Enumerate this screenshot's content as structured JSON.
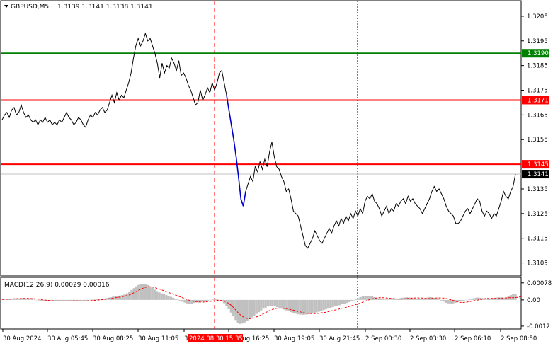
{
  "header": {
    "symbol": "GBPUSD,M5",
    "ohlc": "1.3139 1.3141 1.3138 1.3141"
  },
  "macd_header": "MACD(12,26,9) 0.00029 0.00016",
  "colors": {
    "price_line": "#000000",
    "highlight_line": "#0000cc",
    "level_red": "#ff0000",
    "level_green": "#008000",
    "current_price": "#c0c0c0",
    "histogram": "#c0c0c0",
    "signal": "#ff0000",
    "time_marker": "#ff0000"
  },
  "chart_data": {
    "type": "line",
    "title": "GBPUSD,M5",
    "price_axis": {
      "min": 1.31,
      "max": 1.3211,
      "tick_labels": [
        "1.3205",
        "1.3195",
        "1.3185",
        "1.3175",
        "1.3165",
        "1.3155",
        "1.3135",
        "1.3125",
        "1.3115",
        "1.3105"
      ]
    },
    "levels": [
      {
        "value": 1.319,
        "label": "1.3190",
        "color": "green"
      },
      {
        "value": 1.3171,
        "label": "1.3171",
        "color": "red"
      },
      {
        "value": 1.3145,
        "label": "1.3145",
        "color": "red"
      }
    ],
    "current_price": {
      "value": 1.3141,
      "label": "1.3141"
    },
    "x_labels": [
      "30 Aug 2024",
      "30 Aug 05:45",
      "30 Aug 08:25",
      "30 Aug 11:05",
      "30 Aug 13:45",
      "30 Aug 16:25",
      "30 Aug 19:05",
      "30 Aug 21:45",
      "2 Sep 00:30",
      "2 Sep 03:30",
      "2 Sep 06:10",
      "2 Sep 08:50"
    ],
    "marker_label": "2024.08.30 15:35",
    "highlight_range": [
      94,
      102
    ],
    "price_series": [
      1.3163,
      1.3165,
      1.3166,
      1.3164,
      1.3167,
      1.3168,
      1.3165,
      1.3166,
      1.3169,
      1.3166,
      1.3164,
      1.3165,
      1.3163,
      1.3162,
      1.3163,
      1.3161,
      1.3163,
      1.3162,
      1.3164,
      1.3162,
      1.3163,
      1.3161,
      1.3162,
      1.3161,
      1.3163,
      1.3162,
      1.3164,
      1.3166,
      1.3164,
      1.3163,
      1.3161,
      1.3162,
      1.3164,
      1.3163,
      1.3161,
      1.316,
      1.3163,
      1.3165,
      1.3164,
      1.3166,
      1.3165,
      1.3167,
      1.3168,
      1.3166,
      1.3167,
      1.317,
      1.3173,
      1.317,
      1.3174,
      1.3171,
      1.3173,
      1.3172,
      1.3175,
      1.3178,
      1.3182,
      1.3188,
      1.3193,
      1.3196,
      1.3193,
      1.3195,
      1.3198,
      1.3195,
      1.3196,
      1.3193,
      1.319,
      1.3186,
      1.318,
      1.3186,
      1.3182,
      1.3185,
      1.3184,
      1.3188,
      1.3186,
      1.3183,
      1.3187,
      1.3181,
      1.3182,
      1.318,
      1.3177,
      1.3175,
      1.3172,
      1.3169,
      1.317,
      1.3175,
      1.3171,
      1.3173,
      1.3176,
      1.3174,
      1.3178,
      1.3175,
      1.3178,
      1.3182,
      1.3183,
      1.3178,
      1.3173,
      1.3167,
      1.3161,
      1.3155,
      1.3148,
      1.314,
      1.3131,
      1.3128,
      1.3134,
      1.3137,
      1.314,
      1.3138,
      1.3144,
      1.3142,
      1.3146,
      1.3143,
      1.3147,
      1.3144,
      1.315,
      1.3154,
      1.3148,
      1.3144,
      1.3143,
      1.314,
      1.3138,
      1.3134,
      1.3135,
      1.3131,
      1.3126,
      1.3125,
      1.3124,
      1.312,
      1.3116,
      1.3112,
      1.3111,
      1.3113,
      1.3115,
      1.3118,
      1.3116,
      1.3114,
      1.3113,
      1.3115,
      1.3117,
      1.3119,
      1.3117,
      1.312,
      1.3122,
      1.312,
      1.3123,
      1.3121,
      1.3124,
      1.3122,
      1.3125,
      1.3123,
      1.3126,
      1.3124,
      1.3127,
      1.3125,
      1.313,
      1.3132,
      1.3131,
      1.3133,
      1.313,
      1.3129,
      1.3127,
      1.3124,
      1.3126,
      1.3128,
      1.3125,
      1.3127,
      1.3126,
      1.3129,
      1.3128,
      1.313,
      1.3131,
      1.3129,
      1.3132,
      1.313,
      1.3131,
      1.3129,
      1.3128,
      1.3127,
      1.3125,
      1.3127,
      1.3129,
      1.3131,
      1.3134,
      1.3136,
      1.3134,
      1.3135,
      1.3133,
      1.3131,
      1.3128,
      1.3126,
      1.3125,
      1.3124,
      1.3121,
      1.3121,
      1.3122,
      1.3124,
      1.3126,
      1.3127,
      1.3125,
      1.3127,
      1.3129,
      1.3131,
      1.313,
      1.3126,
      1.3124,
      1.3126,
      1.3125,
      1.3123,
      1.3125,
      1.3124,
      1.3127,
      1.313,
      1.3134,
      1.3132,
      1.3131,
      1.3134,
      1.3136,
      1.3141
    ],
    "macd_axis": {
      "min": -0.0013,
      "max": 0.001,
      "tick_labels": [
        "0.00078",
        "0.00",
        "-0.0012"
      ]
    },
    "macd_histogram": [
      2e-05,
      3e-05,
      4e-05,
      5e-05,
      6e-05,
      6e-05,
      7e-05,
      7e-05,
      7e-05,
      8e-05,
      7e-05,
      6e-05,
      5e-05,
      3e-05,
      2e-05,
      0.0,
      -2e-05,
      -3e-05,
      -4e-05,
      -5e-05,
      -6e-05,
      -6e-05,
      -7e-05,
      -7e-05,
      -6e-05,
      -6e-05,
      -5e-05,
      -5e-05,
      -4e-05,
      -4e-05,
      -4e-05,
      -4e-05,
      -5e-05,
      -5e-05,
      -6e-05,
      -5e-05,
      -4e-05,
      -3e-05,
      -1e-05,
      1e-05,
      2e-05,
      3e-05,
      4e-05,
      5e-05,
      6e-05,
      8e-05,
      0.0001,
      0.00012,
      0.00015,
      0.00017,
      0.00019,
      0.0002,
      0.00022,
      0.00025,
      0.0003,
      0.00036,
      0.00045,
      0.00054,
      0.00062,
      0.00068,
      0.00072,
      0.00074,
      0.00072,
      0.00068,
      0.00062,
      0.00055,
      0.00047,
      0.0004,
      0.00034,
      0.0003,
      0.00026,
      0.00022,
      0.00018,
      0.00014,
      0.0001,
      6e-05,
      2e-05,
      -3e-05,
      -8e-05,
      -0.00012,
      -0.00016,
      -0.00018,
      -0.00017,
      -0.00014,
      -0.00012,
      -0.00012,
      -0.0001,
      -8e-05,
      -5e-05,
      -3e-05,
      -1e-05,
      2e-05,
      4e-05,
      3e-05,
      0.0,
      -6e-05,
      -0.00015,
      -0.00028,
      -0.00042,
      -0.00058,
      -0.00075,
      -0.00092,
      -0.00105,
      -0.0011,
      -0.00108,
      -0.00103,
      -0.00096,
      -0.00088,
      -0.0008,
      -0.00072,
      -0.00064,
      -0.00056,
      -0.00048,
      -0.0004,
      -0.00035,
      -0.0003,
      -0.00028,
      -0.00028,
      -0.0003,
      -0.00033,
      -0.00036,
      -0.0004,
      -0.00044,
      -0.00048,
      -0.00052,
      -0.00056,
      -0.0006,
      -0.00063,
      -0.00066,
      -0.00067,
      -0.00068,
      -0.00067,
      -0.00066,
      -0.00064,
      -0.00062,
      -0.0006,
      -0.00057,
      -0.00054,
      -0.0005,
      -0.00047,
      -0.00043,
      -0.0004,
      -0.00037,
      -0.00033,
      -0.0003,
      -0.00027,
      -0.00024,
      -0.0002,
      -0.00017,
      -0.00014,
      -0.0001,
      -6e-05,
      -2e-05,
      3e-05,
      8e-05,
      0.00013,
      0.00016,
      0.00018,
      0.00019,
      0.00018,
      0.00016,
      0.00013,
      0.0001,
      7e-05,
      5e-05,
      3e-05,
      2e-05,
      1e-05,
      2e-05,
      3e-05,
      4e-05,
      6e-05,
      8e-05,
      0.0001,
      0.00011,
      0.00012,
      0.00011,
      0.0001,
      8e-05,
      6e-05,
      4e-05,
      3e-05,
      5e-05,
      8e-05,
      0.00011,
      0.00013,
      0.00012,
      0.0001,
      6e-05,
      2e-05,
      -3e-05,
      -8e-05,
      -0.00013,
      -0.00016,
      -0.00017,
      -0.00016,
      -0.00013,
      -0.0001,
      -7e-05,
      -4e-05,
      -2e-05,
      0.0,
      2e-05,
      5e-05,
      8e-05,
      0.0001,
      0.00011,
      0.0001,
      8e-05,
      6e-05,
      5e-05,
      6e-05,
      8e-05,
      0.0001,
      0.00011,
      0.00012,
      0.00011,
      0.0001,
      0.00012,
      0.00016,
      0.00022,
      0.00026,
      0.00029
    ],
    "macd_signal": [
      2e-05,
      2e-05,
      3e-05,
      3e-05,
      4e-05,
      5e-05,
      5e-05,
      6e-05,
      6e-05,
      7e-05,
      7e-05,
      7e-05,
      6e-05,
      6e-05,
      5e-05,
      4e-05,
      3e-05,
      1e-05,
      0.0,
      -1e-05,
      -2e-05,
      -3e-05,
      -4e-05,
      -5e-05,
      -5e-05,
      -5e-05,
      -5e-05,
      -5e-05,
      -5e-05,
      -5e-05,
      -5e-05,
      -4e-05,
      -4e-05,
      -5e-05,
      -5e-05,
      -5e-05,
      -5e-05,
      -4e-05,
      -4e-05,
      -3e-05,
      -2e-05,
      -1e-05,
      0.0,
      1e-05,
      2e-05,
      4e-05,
      5e-05,
      7e-05,
      8e-05,
      0.0001,
      0.00012,
      0.00013,
      0.00015,
      0.00017,
      0.0002,
      0.00023,
      0.00027,
      0.00033,
      0.00038,
      0.00044,
      0.00049,
      0.00054,
      0.00058,
      0.0006,
      0.0006,
      0.00059,
      0.00057,
      0.00053,
      0.0005,
      0.00046,
      0.00042,
      0.00038,
      0.00034,
      0.0003,
      0.00026,
      0.00022,
      0.00018,
      0.00014,
      0.0001,
      6e-05,
      2e-05,
      -2e-05,
      -5e-05,
      -7e-05,
      -8e-05,
      -9e-05,
      -0.0001,
      -0.0001,
      -9e-05,
      -8e-05,
      -7e-05,
      -5e-05,
      -4e-05,
      -2e-05,
      -2e-05,
      -3e-05,
      -5e-05,
      -0.0001,
      -0.00016,
      -0.00024,
      -0.00034,
      -0.00046,
      -0.00058,
      -0.00068,
      -0.00076,
      -0.00082,
      -0.00085,
      -0.00086,
      -0.00085,
      -0.00082,
      -0.00078,
      -0.00074,
      -0.00069,
      -0.00063,
      -0.00058,
      -0.00052,
      -0.00047,
      -0.00043,
      -0.0004,
      -0.00038,
      -0.00038,
      -0.00038,
      -0.00039,
      -0.0004,
      -0.00042,
      -0.00045,
      -0.00047,
      -0.0005,
      -0.00053,
      -0.00055,
      -0.00058,
      -0.0006,
      -0.00061,
      -0.00062,
      -0.00063,
      -0.00063,
      -0.00062,
      -0.00061,
      -0.00059,
      -0.00058,
      -0.00056,
      -0.00054,
      -0.00051,
      -0.00049,
      -0.00046,
      -0.00044,
      -0.00041,
      -0.00038,
      -0.00036,
      -0.00033,
      -0.0003,
      -0.00027,
      -0.00024,
      -0.00021,
      -0.00018,
      -0.00014,
      -0.0001,
      -6e-05,
      -2e-05,
      2e-05,
      5e-05,
      7e-05,
      9e-05,
      0.0001,
      0.0001,
      0.0001,
      9e-05,
      8e-05,
      7e-05,
      6e-05,
      5e-05,
      4e-05,
      4e-05,
      4e-05,
      5e-05,
      6e-05,
      7e-05,
      8e-05,
      9e-05,
      9e-05,
      9e-05,
      9e-05,
      8e-05,
      7e-05,
      6e-05,
      6e-05,
      7e-05,
      8e-05,
      9e-05,
      9e-05,
      9e-05,
      8e-05,
      6e-05,
      4e-05,
      1e-05,
      -2e-05,
      -6e-05,
      -9e-05,
      -0.00011,
      -0.00012,
      -0.00011,
      -0.0001,
      -8e-05,
      -6e-05,
      -4e-05,
      -2e-05,
      0.0,
      2e-05,
      4e-05,
      6e-05,
      7e-05,
      7e-05,
      7e-05,
      7e-05,
      7e-05,
      7e-05,
      8e-05,
      9e-05,
      9e-05,
      0.0001,
      0.0001,
      0.0001,
      0.00011,
      0.00012,
      0.00014,
      0.00016
    ]
  }
}
